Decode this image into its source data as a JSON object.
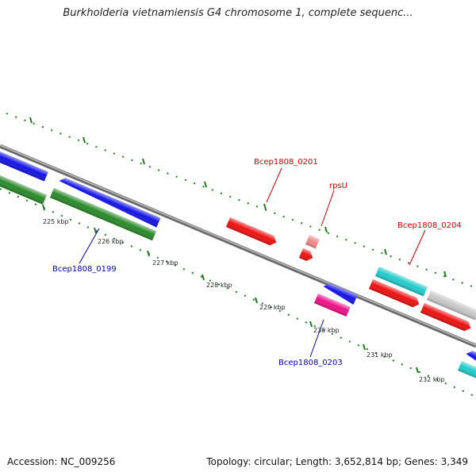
{
  "title": "Burkholderia vietnamiensis G4 chromosome 1, complete sequenc...",
  "footer": {
    "accession": "Accession: NC_009256",
    "summary": "Topology: circular; Length: 3,652,814 bp; Genes: 3,349"
  },
  "colors": {
    "backbone": "#8a8a8a",
    "ticks": "#1f7a1f",
    "blue": "#1414e6",
    "green": "#2a8a2a",
    "red": "#ee1111",
    "pink": "#f08a8a",
    "magenta": "#ee1188",
    "cyan": "#22cccc",
    "gray": "#c8c8c8",
    "label_red": "#cc0000",
    "label_blue": "#0000aa"
  },
  "ruler": [
    {
      "label": "225 kbp"
    },
    {
      "label": "226 kbp"
    },
    {
      "label": "227 kbp"
    },
    {
      "label": "228 kbp"
    },
    {
      "label": "229 kbp"
    },
    {
      "label": "230 kbp"
    },
    {
      "label": "231 kbp"
    },
    {
      "label": "232 kbp"
    }
  ],
  "gene_labels": [
    {
      "name": "Bcep1808_0199",
      "color": "label_blue"
    },
    {
      "name": "Bcep1808_0201",
      "color": "label_red"
    },
    {
      "name": "rpsU",
      "color": "label_red"
    },
    {
      "name": "Bcep1808_0204",
      "color": "label_red"
    },
    {
      "name": "Bcep1808_0203",
      "color": "label_blue"
    }
  ]
}
